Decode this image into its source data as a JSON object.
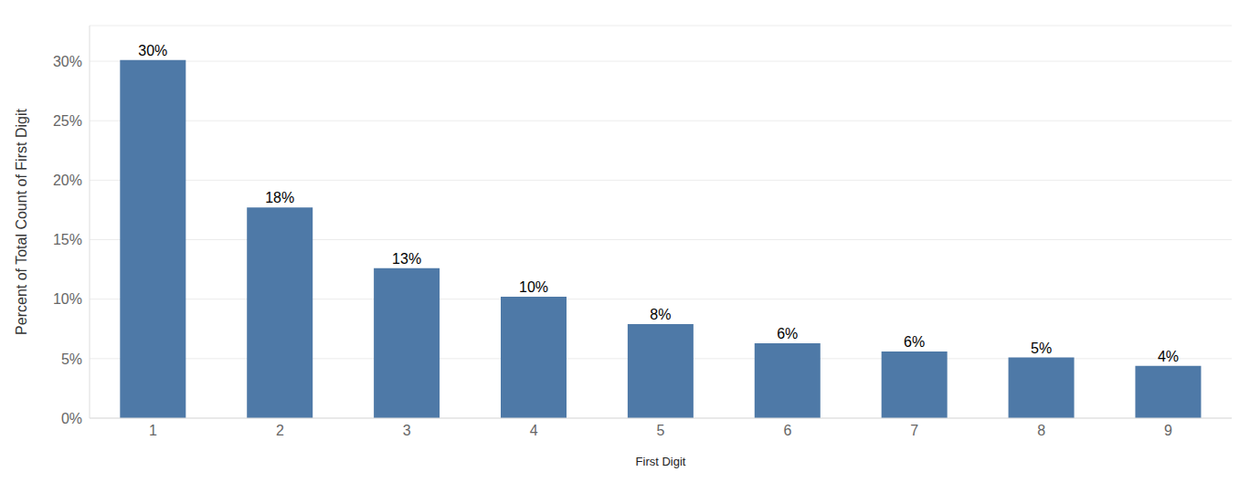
{
  "chart_data": {
    "type": "bar",
    "x_label": "First Digit",
    "y_label": "Percent of Total Count of First Digit",
    "categories": [
      "1",
      "2",
      "3",
      "4",
      "5",
      "6",
      "7",
      "8",
      "9"
    ],
    "values": [
      30.1,
      17.7,
      12.6,
      10.2,
      7.9,
      6.3,
      5.6,
      5.1,
      4.4
    ],
    "value_labels": [
      "30%",
      "18%",
      "13%",
      "10%",
      "8%",
      "6%",
      "6%",
      "5%",
      "4%"
    ],
    "data_labels": true,
    "color": "#4e79a7",
    "ylim": [
      0,
      33
    ],
    "yticks": [
      {
        "value": 0,
        "label": "0%"
      },
      {
        "value": 5,
        "label": "5%"
      },
      {
        "value": 10,
        "label": "10%"
      },
      {
        "value": 15,
        "label": "15%"
      },
      {
        "value": 20,
        "label": "20%"
      },
      {
        "value": 25,
        "label": "25%"
      },
      {
        "value": 30,
        "label": "30%"
      }
    ],
    "grid": true
  }
}
